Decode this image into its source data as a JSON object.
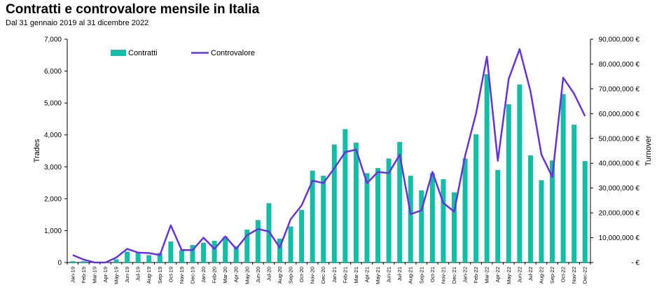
{
  "chart_data": {
    "type": "bar",
    "title": "Contratti e controvalore mensile in Italia",
    "subtitle": "Dal 31 gennaio 2019 al 31 dicembre 2022",
    "ylabel_left": "Trades",
    "ylabel_right": "Turnover",
    "ylim_left": [
      0,
      7000
    ],
    "ylim_right": [
      0,
      90000000
    ],
    "yticks_left": [
      "0",
      "1,000",
      "2,000",
      "3,000",
      "4,000",
      "5,000",
      "6,000",
      "7,000"
    ],
    "yticks_right": [
      "- €",
      "10,000,000 €",
      "20,000,000 €",
      "30,000,000 €",
      "40,000,000 €",
      "50,000,000 €",
      "60,000,000 €",
      "70,000,000 €",
      "80,000,000 €",
      "90,000,000 €"
    ],
    "legend_placement": "top-left",
    "grid": false,
    "categories": [
      "Jan-19",
      "Feb-19",
      "Mar-19",
      "Apr-19",
      "May-19",
      "Jun-19",
      "Jul-19",
      "Aug-19",
      "Sep-19",
      "Oct-19",
      "Nov-19",
      "Dec-19",
      "Jan-20",
      "Feb-20",
      "Mar-20",
      "Apr-20",
      "May-20",
      "Jun-20",
      "Jul-20",
      "Aug-20",
      "Sep-20",
      "Oct-20",
      "Nov-20",
      "Dec-20",
      "Jan-21",
      "Feb-21",
      "Mar-21",
      "Apr-21",
      "May-21",
      "Jun-21",
      "Jul-21",
      "Aug-21",
      "Sep-21",
      "Oct-21",
      "Nov-21",
      "Dec-21",
      "Jan-22",
      "Feb-22",
      "Mar-22",
      "Apr-22",
      "May-22",
      "Jun-22",
      "Jul-22",
      "Aug-22",
      "Sep-22",
      "Oct-22",
      "Nov-22",
      "Dec-22"
    ],
    "series": [
      {
        "name": "Contratti",
        "type": "bar",
        "axis": "left",
        "color": "#12bfa6",
        "values": [
          40,
          40,
          0,
          10,
          100,
          340,
          320,
          230,
          300,
          660,
          390,
          550,
          620,
          680,
          810,
          510,
          1030,
          1330,
          1860,
          750,
          1130,
          1650,
          2880,
          2720,
          3700,
          4180,
          3760,
          2800,
          2960,
          3260,
          3780,
          2720,
          2260,
          2800,
          2610,
          2200,
          3260,
          4020,
          5900,
          2900,
          4960,
          5580,
          3360,
          2580,
          3200,
          5280,
          4320,
          3180
        ]
      },
      {
        "name": "Controvalore",
        "type": "line",
        "axis": "right",
        "color": "#6633dd",
        "values": [
          3000000,
          1200000,
          0,
          0,
          2000000,
          5500000,
          4000000,
          3800000,
          3000000,
          15000000,
          5000000,
          5000000,
          10000000,
          5500000,
          10500000,
          5500000,
          11000000,
          13500000,
          12500000,
          6000000,
          17500000,
          23000000,
          33000000,
          32000000,
          38000000,
          44500000,
          45500000,
          32000000,
          36500000,
          36000000,
          43500000,
          19500000,
          21000000,
          36500000,
          24000000,
          20500000,
          43000000,
          60000000,
          83000000,
          41000000,
          74000000,
          86000000,
          69000000,
          43500000,
          34500000,
          74500000,
          68000000,
          59000000
        ]
      }
    ]
  }
}
